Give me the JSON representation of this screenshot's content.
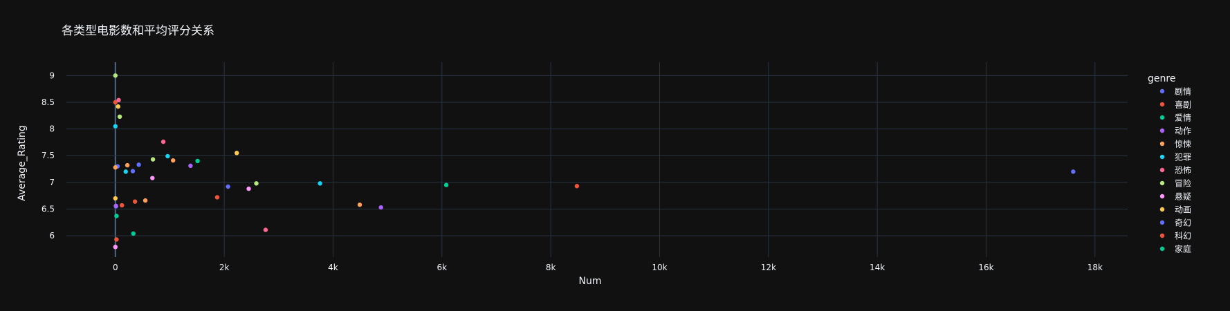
{
  "chart_data": {
    "type": "scatter",
    "title": "各类型电影数和平均评分关系",
    "xlabel": "Num",
    "ylabel": "Average_Rating",
    "xlim": [
      -900,
      18600
    ],
    "ylim": [
      5.6,
      9.25
    ],
    "x_ticks": [
      0,
      2000,
      4000,
      6000,
      8000,
      10000,
      12000,
      14000,
      16000,
      18000
    ],
    "x_tick_labels": [
      "0",
      "2k",
      "4k",
      "6k",
      "8k",
      "10k",
      "12k",
      "14k",
      "16k",
      "18k"
    ],
    "y_ticks": [
      6,
      6.5,
      7,
      7.5,
      8,
      8.5,
      9
    ],
    "y_tick_labels": [
      "6",
      "6.5",
      "7",
      "7.5",
      "8",
      "8.5",
      "9"
    ],
    "grid": true,
    "legend_title": "genre",
    "legend_position": "right",
    "series": [
      {
        "name": "剧情",
        "color": "#636efa",
        "points": [
          {
            "x": 17600,
            "y": 7.2
          },
          {
            "x": 2070,
            "y": 6.92
          },
          {
            "x": 430,
            "y": 7.33
          },
          {
            "x": 320,
            "y": 7.21
          },
          {
            "x": 40,
            "y": 7.3
          },
          {
            "x": 10,
            "y": 6.55
          }
        ]
      },
      {
        "name": "喜剧",
        "color": "#ef553b",
        "points": [
          {
            "x": 8480,
            "y": 6.93
          },
          {
            "x": 1870,
            "y": 6.72
          },
          {
            "x": 360,
            "y": 6.64
          },
          {
            "x": 120,
            "y": 6.57
          },
          {
            "x": 20,
            "y": 5.93
          },
          {
            "x": 0,
            "y": 8.5
          }
        ]
      },
      {
        "name": "爱情",
        "color": "#00cc96",
        "points": [
          {
            "x": 6080,
            "y": 6.95
          },
          {
            "x": 1510,
            "y": 7.4
          },
          {
            "x": 330,
            "y": 6.04
          },
          {
            "x": 20,
            "y": 6.37
          }
        ]
      },
      {
        "name": "动作",
        "color": "#ab63fa",
        "points": [
          {
            "x": 4880,
            "y": 6.53
          },
          {
            "x": 1380,
            "y": 7.31
          },
          {
            "x": 10,
            "y": 6.56
          }
        ]
      },
      {
        "name": "惊悚",
        "color": "#ffa15a",
        "points": [
          {
            "x": 4490,
            "y": 6.58
          },
          {
            "x": 1060,
            "y": 7.41
          },
          {
            "x": 550,
            "y": 6.66
          },
          {
            "x": 220,
            "y": 7.32
          },
          {
            "x": 0,
            "y": 7.28
          }
        ]
      },
      {
        "name": "犯罪",
        "color": "#19d3f3",
        "points": [
          {
            "x": 3760,
            "y": 6.98
          },
          {
            "x": 960,
            "y": 7.49
          },
          {
            "x": 190,
            "y": 7.2
          },
          {
            "x": 0,
            "y": 8.05
          }
        ]
      },
      {
        "name": "恐怖",
        "color": "#ff6692",
        "points": [
          {
            "x": 2760,
            "y": 6.11
          },
          {
            "x": 880,
            "y": 7.76
          },
          {
            "x": 60,
            "y": 8.54
          }
        ]
      },
      {
        "name": "冒险",
        "color": "#b6e880",
        "points": [
          {
            "x": 2590,
            "y": 6.98
          },
          {
            "x": 690,
            "y": 7.43
          },
          {
            "x": 80,
            "y": 8.23
          },
          {
            "x": 0,
            "y": 9.0
          }
        ]
      },
      {
        "name": "悬疑",
        "color": "#ff97ff",
        "points": [
          {
            "x": 2450,
            "y": 6.88
          },
          {
            "x": 680,
            "y": 7.08
          },
          {
            "x": 0,
            "y": 5.79
          }
        ]
      },
      {
        "name": "动画",
        "color": "#fecb52",
        "points": [
          {
            "x": 2230,
            "y": 7.55
          },
          {
            "x": 50,
            "y": 8.42
          },
          {
            "x": 0,
            "y": 6.7
          }
        ]
      },
      {
        "name": "奇幻",
        "color": "#636efa",
        "points": []
      },
      {
        "name": "科幻",
        "color": "#ef553b",
        "points": []
      },
      {
        "name": "家庭",
        "color": "#00cc96",
        "points": []
      }
    ]
  }
}
